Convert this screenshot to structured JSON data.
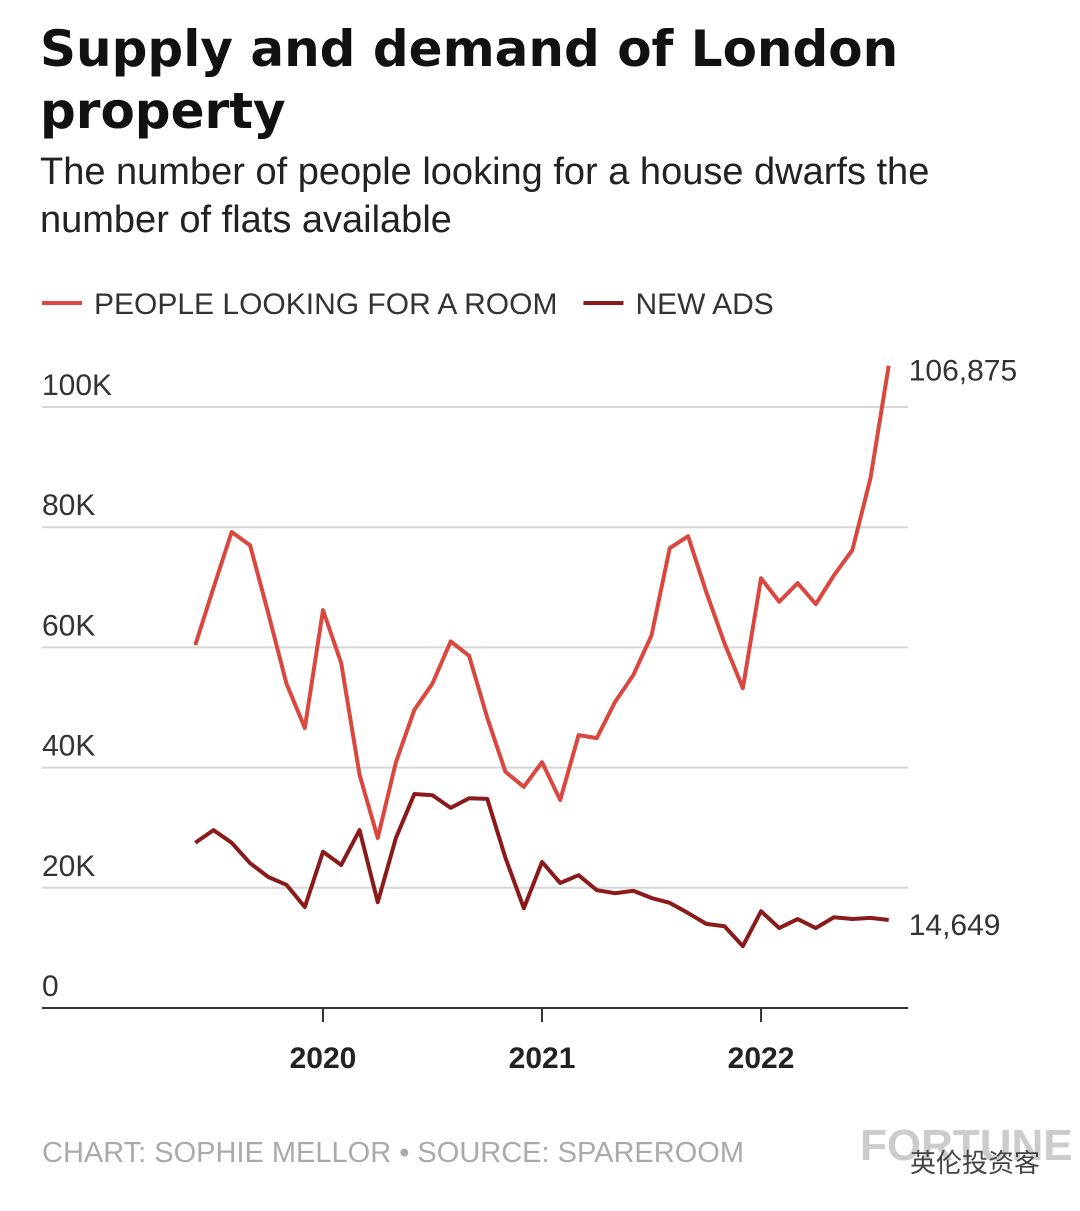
{
  "chart_data": {
    "type": "line",
    "title": "Supply and demand of London property",
    "subtitle": "The number of people looking for a house dwarfs the number of flats available",
    "x": [
      2019.417,
      2019.5,
      2019.583,
      2019.667,
      2019.75,
      2019.833,
      2019.917,
      2020,
      2020.083,
      2020.167,
      2020.25,
      2020.333,
      2020.417,
      2020.5,
      2020.583,
      2020.667,
      2020.75,
      2020.833,
      2020.917,
      2021,
      2021.083,
      2021.167,
      2021.25,
      2021.333,
      2021.417,
      2021.5,
      2021.583,
      2021.667,
      2021.75,
      2021.833,
      2021.917,
      2022,
      2022.083,
      2022.167,
      2022.25,
      2022.333,
      2022.417,
      2022.5,
      2022.583
    ],
    "series": [
      {
        "name": "PEOPLE LOOKING FOR A ROOM",
        "color": "#d9473f",
        "values": [
          60400,
          69900,
          79200,
          77000,
          65700,
          54000,
          46600,
          66200,
          57400,
          38800,
          28300,
          40900,
          49600,
          54000,
          61000,
          58600,
          48300,
          39300,
          36800,
          40900,
          34600,
          45400,
          44900,
          50900,
          55400,
          62000,
          76500,
          78500,
          69200,
          60700,
          53200,
          71500,
          67600,
          70700,
          67200,
          72000,
          76200,
          88200,
          106875
        ],
        "value_labels": [
          null,
          null,
          null,
          null,
          null,
          null,
          null,
          null,
          null,
          null,
          null,
          null,
          null,
          null,
          null,
          null,
          null,
          null,
          null,
          null,
          null,
          null,
          null,
          null,
          null,
          null,
          null,
          null,
          null,
          null,
          null,
          null,
          null,
          null,
          null,
          null,
          null,
          null,
          "106,875"
        ]
      },
      {
        "name": "NEW ADS",
        "color": "#8b1a1a",
        "values": [
          27500,
          29600,
          27500,
          24100,
          21800,
          20500,
          16800,
          26000,
          23800,
          29600,
          17600,
          28300,
          35600,
          35400,
          33300,
          34900,
          34800,
          25000,
          16600,
          24300,
          20800,
          22100,
          19600,
          19100,
          19500,
          18300,
          17500,
          15800,
          14000,
          13600,
          10300,
          16100,
          13300,
          14800,
          13300,
          15100,
          14800,
          15000,
          14649
        ],
        "value_labels": [
          null,
          null,
          null,
          null,
          null,
          null,
          null,
          null,
          null,
          null,
          null,
          null,
          null,
          null,
          null,
          null,
          null,
          null,
          null,
          null,
          null,
          null,
          null,
          null,
          null,
          null,
          null,
          null,
          null,
          null,
          null,
          null,
          null,
          null,
          null,
          null,
          null,
          null,
          "14,649"
        ]
      }
    ],
    "xlim": [
      2018.717,
      2022.671
    ],
    "xticks": [
      2020,
      2021,
      2022
    ],
    "ylim": [
      0,
      100000
    ],
    "yticks": [
      0,
      {
        "value": 20000,
        "label": "20K"
      },
      {
        "value": 40000,
        "label": "40K"
      },
      {
        "value": 60000,
        "label": "60K"
      },
      {
        "value": 80000,
        "label": "80K"
      },
      {
        "value": 100000,
        "label": "100K"
      }
    ],
    "grid": true,
    "source": "CHART: SOPHIE MELLOR • SOURCE: SPAREROOM",
    "watermarks": [
      "FORTUNE",
      "英伦投资客"
    ]
  }
}
